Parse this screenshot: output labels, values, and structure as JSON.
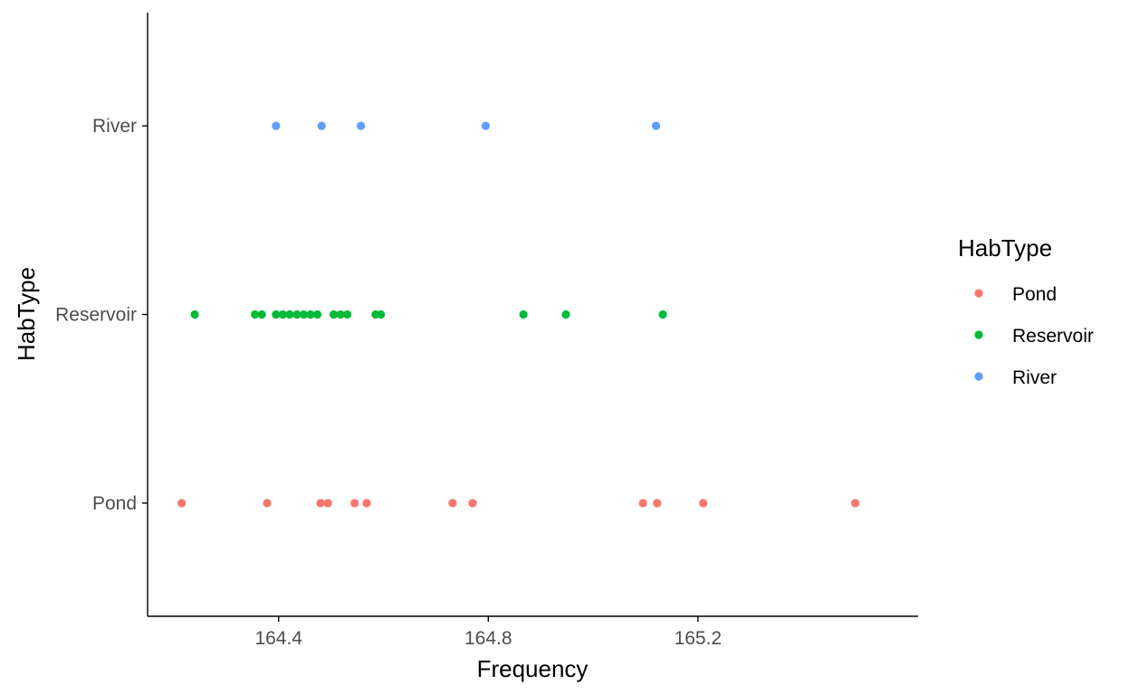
{
  "chart_data": {
    "type": "scatter",
    "title": "",
    "xlabel": "Frequency",
    "ylabel": "HabType",
    "xlim": [
      164.15,
      165.62
    ],
    "x_ticks": [
      164.4,
      164.8,
      165.2
    ],
    "x_tick_labels": [
      "164.4",
      "164.8",
      "165.2"
    ],
    "categories": [
      "Pond",
      "Reservoir",
      "River"
    ],
    "grid": false,
    "legend": {
      "title": "HabType",
      "position": "right"
    },
    "series": [
      {
        "name": "Pond",
        "color": "#F8766D",
        "x": [
          164.215,
          164.378,
          164.48,
          164.494,
          164.545,
          164.568,
          164.732,
          164.77,
          165.095,
          165.122,
          165.21,
          165.5
        ]
      },
      {
        "name": "Reservoir",
        "color": "#00BA38",
        "x": [
          164.24,
          164.355,
          164.368,
          164.395,
          164.408,
          164.421,
          164.435,
          164.448,
          164.461,
          164.474,
          164.505,
          164.518,
          164.531,
          164.585,
          164.595,
          164.867,
          164.948,
          165.133
        ]
      },
      {
        "name": "River",
        "color": "#619CFF",
        "x": [
          164.395,
          164.482,
          164.557,
          164.795,
          165.12
        ]
      }
    ]
  }
}
